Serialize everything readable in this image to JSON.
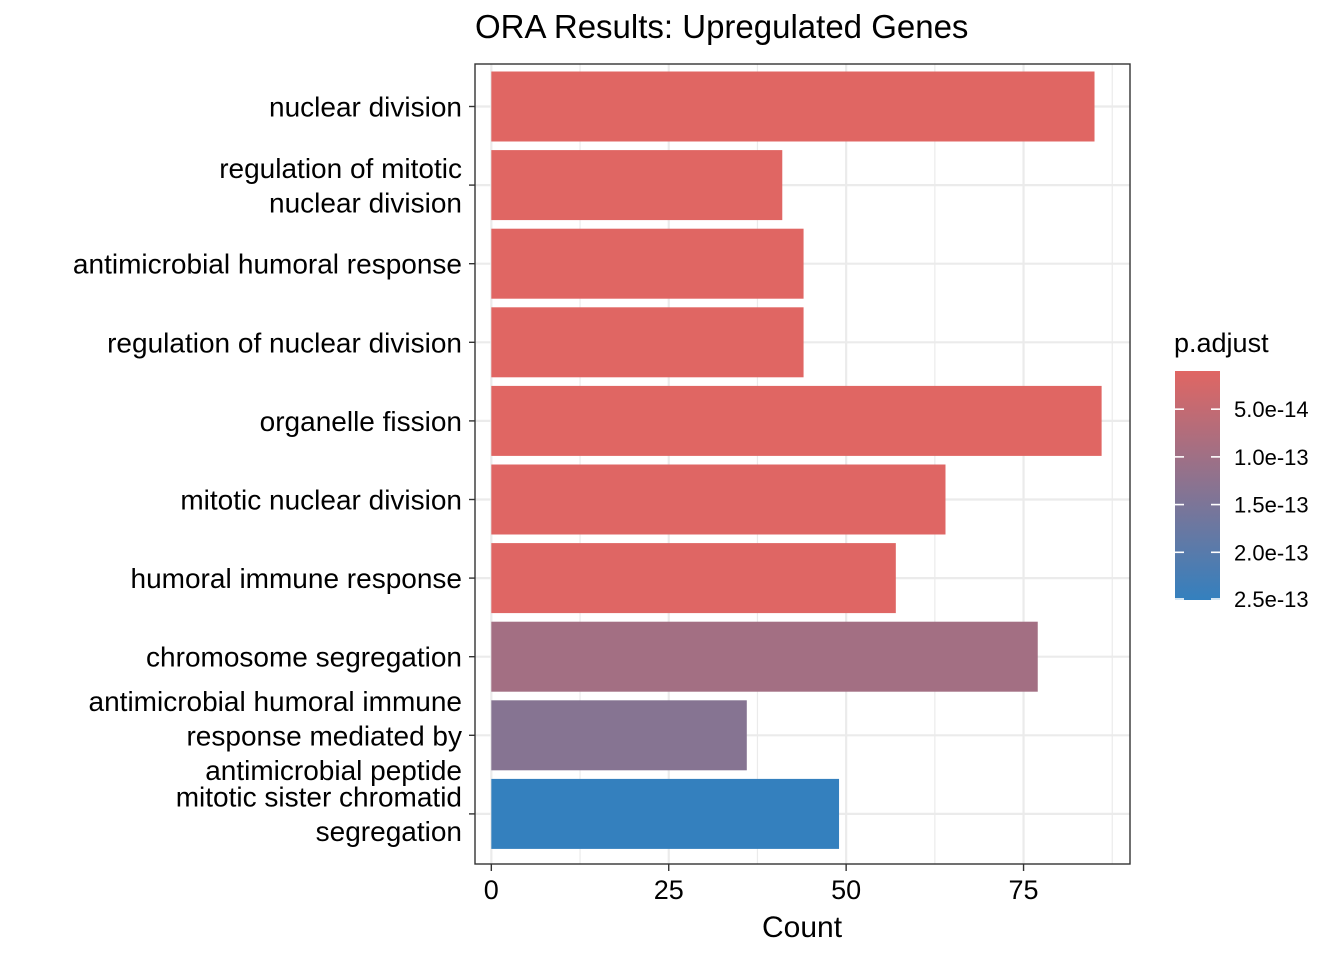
{
  "chart_data": {
    "type": "bar",
    "orientation": "horizontal",
    "title": "ORA Results: Upregulated Genes",
    "xlabel": "Count",
    "ylabel": "",
    "xlim": [
      -2.3,
      90
    ],
    "x_ticks": [
      0,
      25,
      50,
      75
    ],
    "x_tick_labels": [
      "0",
      "25",
      "50",
      "75"
    ],
    "grid": true,
    "categories": [
      [
        "nuclear division"
      ],
      [
        "regulation of mitotic",
        "nuclear division"
      ],
      [
        "antimicrobial humoral response"
      ],
      [
        "regulation of nuclear division"
      ],
      [
        "organelle fission"
      ],
      [
        "mitotic nuclear division"
      ],
      [
        "humoral immune response"
      ],
      [
        "chromosome segregation"
      ],
      [
        "antimicrobial humoral immune",
        "response mediated by",
        "antimicrobial peptide"
      ],
      [
        "mitotic sister chromatid",
        "segregation"
      ]
    ],
    "values": [
      85,
      41,
      44,
      44,
      86,
      64,
      57,
      77,
      36,
      49
    ],
    "p_adjust": [
      1e-14,
      1e-14,
      1e-14,
      1e-14,
      1e-14,
      1.2e-14,
      1.2e-14,
      9.5e-14,
      1.35e-13,
      2.5e-13
    ],
    "legend": {
      "title": "p.adjust",
      "position": "right",
      "range": [
        1e-14,
        2.5e-13
      ],
      "low_color": "#E06663",
      "high_color": "#3480BE",
      "breaks": [
        5e-14,
        1e-13,
        1.5e-13,
        2e-13,
        2.5e-13
      ],
      "labels": [
        "5.0e-14",
        "1.0e-13",
        "1.5e-13",
        "2.0e-13",
        "2.5e-13"
      ]
    }
  }
}
